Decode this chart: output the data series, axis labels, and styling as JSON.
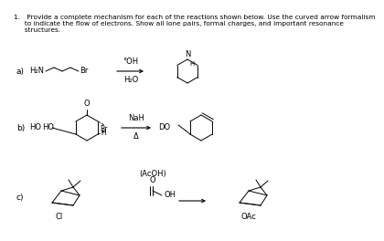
{
  "bg_color": "#ffffff",
  "font_size_title": 5.3,
  "font_size_label": 6.5,
  "font_size_chem": 6.0,
  "title_lines": [
    "1.   Provide a complete mechanism for each of the reactions shown below. Use the curved arrow formalism",
    "     to indicate the flow of electrons. Show all lone pairs, formal charges, and important resonance",
    "     structures."
  ]
}
